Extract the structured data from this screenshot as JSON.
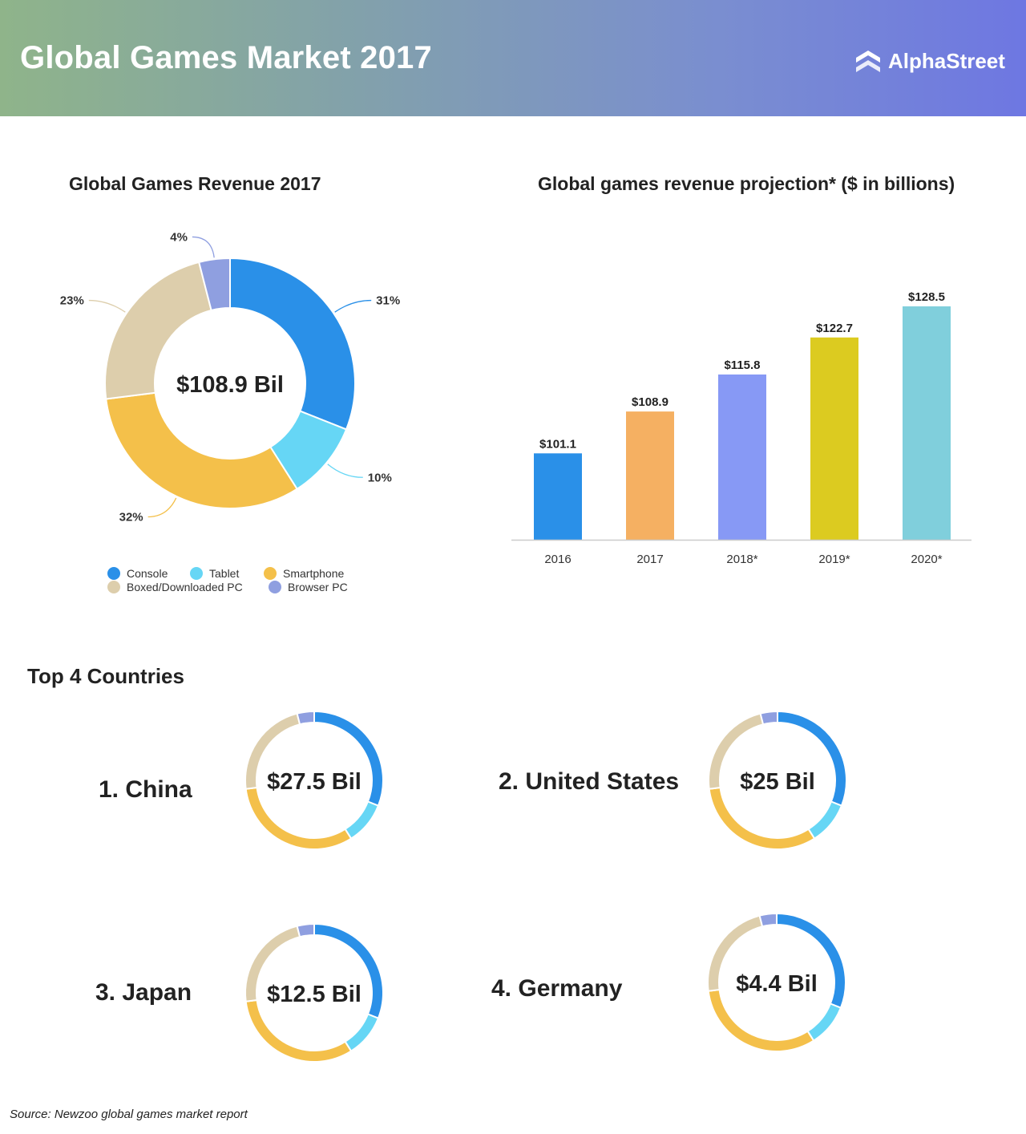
{
  "header": {
    "title": "Global Games Market 2017",
    "brand": "AlphaStreet",
    "brand_icon": "alphastreet-logo-icon"
  },
  "colors": {
    "Console": "#2a90e8",
    "Tablet": "#66d6f5",
    "Smartphone": "#f4c04a",
    "Boxed/Downloaded PC": "#ddceac",
    "Browser PC": "#8f9fe0"
  },
  "chart_data": [
    {
      "type": "pie",
      "title": "Global Games Revenue 2017",
      "center_label": "$108.9 Bil",
      "slices": [
        {
          "label": "Console",
          "value": 31,
          "display": "31%"
        },
        {
          "label": "Tablet",
          "value": 10,
          "display": "10%"
        },
        {
          "label": "Smartphone",
          "value": 32,
          "display": "32%"
        },
        {
          "label": "Boxed/Downloaded PC",
          "value": 23,
          "display": "23%"
        },
        {
          "label": "Browser PC",
          "value": 4,
          "display": "4%"
        }
      ],
      "legend": [
        "Console",
        "Tablet",
        "Smartphone",
        "Boxed/Downloaded PC",
        "Browser PC"
      ],
      "legend_position": "bottom"
    },
    {
      "type": "bar",
      "title": "Global games revenue projection* ($ in billions)",
      "categories": [
        "2016",
        "2017",
        "2018*",
        "2019*",
        "2020*"
      ],
      "values": [
        101.1,
        108.9,
        115.8,
        122.7,
        128.5
      ],
      "value_labels": [
        "$101.1",
        "$108.9",
        "$115.8",
        "$122.7",
        "$128.5"
      ],
      "bar_colors": [
        "#2a90e8",
        "#f5b062",
        "#8799f5",
        "#dccb20",
        "#80cfdc"
      ],
      "ylim": [
        85,
        130
      ],
      "grid": false
    }
  ],
  "top_countries": {
    "title": "Top 4 Countries",
    "items": [
      {
        "label": "1. China",
        "value": "$27.5 Bil"
      },
      {
        "label": "2. United States",
        "value": "$25 Bil"
      },
      {
        "label": "3. Japan",
        "value": "$12.5 Bil"
      },
      {
        "label": "4. Germany",
        "value": "$4.4 Bil"
      }
    ]
  },
  "source": "Source: Newzoo global games market report"
}
